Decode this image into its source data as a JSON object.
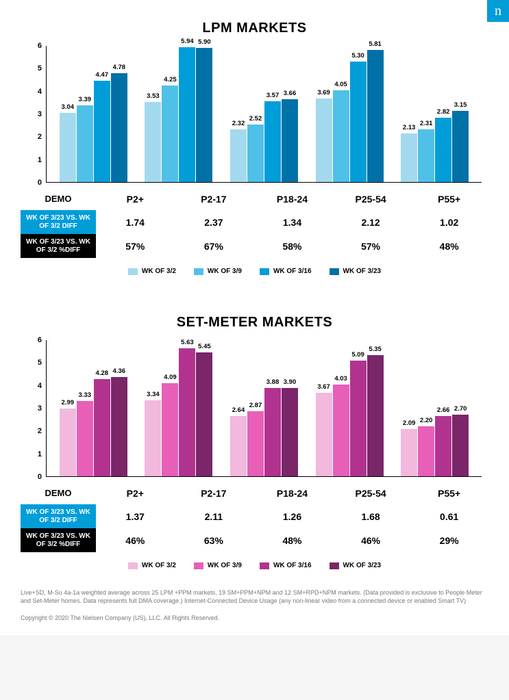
{
  "badge_letter": "n",
  "badge_bg": "#009dd9",
  "charts": [
    {
      "title": "LPM MARKETS",
      "y_max": 6,
      "y_ticks": [
        0,
        1,
        2,
        3,
        4,
        5,
        6
      ],
      "colors": [
        "#a3d9ef",
        "#4fc0e8",
        "#009dd9",
        "#0071a6"
      ],
      "legend_labels": [
        "WK OF 3/2",
        "WK OF 3/9",
        "WK OF 3/16",
        "WK OF 3/23"
      ],
      "categories": [
        "P2+",
        "P2-17",
        "P18-24",
        "P25-54",
        "P55+"
      ],
      "series": [
        [
          3.04,
          3.39,
          4.47,
          4.78
        ],
        [
          3.53,
          4.25,
          5.94,
          5.9
        ],
        [
          2.32,
          2.52,
          3.57,
          3.66
        ],
        [
          3.69,
          4.05,
          5.3,
          5.81
        ],
        [
          2.13,
          2.31,
          2.82,
          3.15
        ]
      ],
      "table": {
        "head_demo": "DEMO",
        "head_diff": "WK OF 3/23 VS. WK OF 3/2 DIFF",
        "head_pct": "WK OF 3/23 VS. WK OF 3/2 %DIFF",
        "diff_bg": "#009dd9",
        "diff_row": [
          "1.74",
          "2.37",
          "1.34",
          "2.12",
          "1.02"
        ],
        "pct_row": [
          "57%",
          "67%",
          "58%",
          "57%",
          "48%"
        ]
      }
    },
    {
      "title": "SET-METER MARKETS",
      "y_max": 6,
      "y_ticks": [
        0,
        1,
        2,
        3,
        4,
        5,
        6
      ],
      "colors": [
        "#f2b8dd",
        "#e85fb8",
        "#b2338f",
        "#7a2668"
      ],
      "legend_labels": [
        "WK OF 3/2",
        "WK OF 3/9",
        "WK OF 3/16",
        "WK OF 3/23"
      ],
      "categories": [
        "P2+",
        "P2-17",
        "P18-24",
        "P25-54",
        "P55+"
      ],
      "series": [
        [
          2.99,
          3.33,
          4.28,
          4.36
        ],
        [
          3.34,
          4.09,
          5.63,
          5.45
        ],
        [
          2.64,
          2.87,
          3.88,
          3.9
        ],
        [
          3.67,
          4.03,
          5.09,
          5.35
        ],
        [
          2.09,
          2.2,
          2.66,
          2.7
        ]
      ],
      "table": {
        "head_demo": "DEMO",
        "head_diff": "WK OF 3/23 VS. WK OF 3/2 DIFF",
        "head_pct": "WK OF 3/23 VS. WK OF 3/2 %DIFF",
        "diff_bg": "#009dd9",
        "diff_row": [
          "1.37",
          "2.11",
          "1.26",
          "1.68",
          "0.61"
        ],
        "pct_row": [
          "46%",
          "63%",
          "48%",
          "46%",
          "29%"
        ]
      }
    }
  ],
  "footnote": "Live+SD, M-Su 4a-1a weighted average across 25 LPM +PPM markets, 19 SM+PPM+NPM and 12 SM+RPD+NPM markets. (Data provided is exclusive to People Meter and Set-Meter homes. Data represents full DMA coverage.) Internet-Connected Device Usage (any non-linear video from a connected device or enabled Smart TV)",
  "copyright": "Copyright © 2020 The Nielsen Company (US), LLC. All Rights Reserved."
}
